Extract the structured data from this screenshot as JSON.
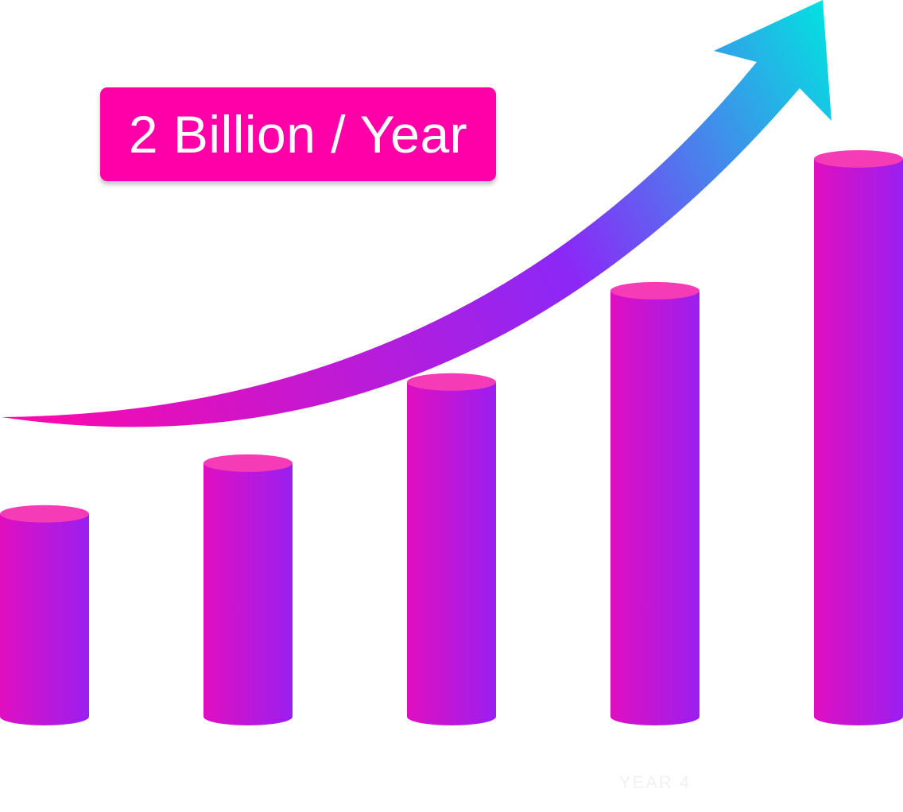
{
  "chart_data": {
    "type": "bar",
    "style": "3d-cylinder",
    "categories": [
      "",
      "",
      "",
      "YEAR 4",
      ""
    ],
    "values": [
      2.0,
      2.5,
      3.3,
      4.2,
      5.5
    ],
    "ylim": [
      0,
      6
    ],
    "title": "",
    "xlabel": "",
    "ylabel": "",
    "grid": false,
    "legend": "none",
    "annotation": "2 Billion / Year",
    "trend_arrow": "upward curved arrow, left to right",
    "colors": {
      "bar_left": "#e00fc0",
      "bar_right": "#9a1ff0",
      "bar_top": "#f53bb6",
      "arrow_start": "#ff08a9",
      "arrow_mid": "#8b28f7",
      "arrow_end": "#00e5e0",
      "callout_bg": "#ff00a8",
      "callout_text": "#ffffff",
      "label_text": "#f1f1f1"
    }
  }
}
